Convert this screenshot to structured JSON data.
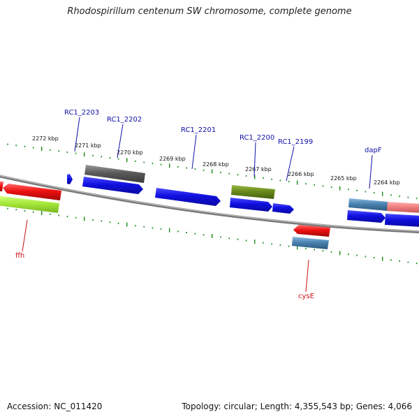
{
  "header": {
    "title": "Rhodospirillum centenum SW chromosome, complete genome"
  },
  "footer": {
    "accession": "Accession: NC_011420",
    "topology": "Topology: circular; Length: 4,355,543 bp; Genes: 4,066"
  },
  "colors": {
    "backbone": "#808080",
    "tick": "#1a8a1a",
    "forward_gene": "#1010d8",
    "reverse_gene": "#e01010",
    "label_blue": "#1010a8",
    "label_red": "#cc1111",
    "dark_gray": "#606060",
    "olive": "#6a8a1a",
    "steel_blue": "#4a82b0",
    "light_green": "#a6e83a",
    "pink": "#f08080"
  },
  "scale": {
    "unit": "kbp",
    "ticks": [
      "2272 kbp",
      "2271 kbp",
      "2270 kbp",
      "2269 kbp",
      "2268 kbp",
      "2267 kbp",
      "2266 kbp",
      "2265 kbp",
      "2264 kbp"
    ]
  },
  "gene_labels": [
    {
      "name": "RC1_2203",
      "color": "blue"
    },
    {
      "name": "RC1_2202",
      "color": "blue"
    },
    {
      "name": "RC1_2201",
      "color": "blue"
    },
    {
      "name": "RC1_2200",
      "color": "blue"
    },
    {
      "name": "RC1_2199",
      "color": "blue"
    },
    {
      "name": "dapF",
      "color": "blue"
    },
    {
      "name": "ffh",
      "color": "red"
    },
    {
      "name": "cysE",
      "color": "red"
    }
  ]
}
